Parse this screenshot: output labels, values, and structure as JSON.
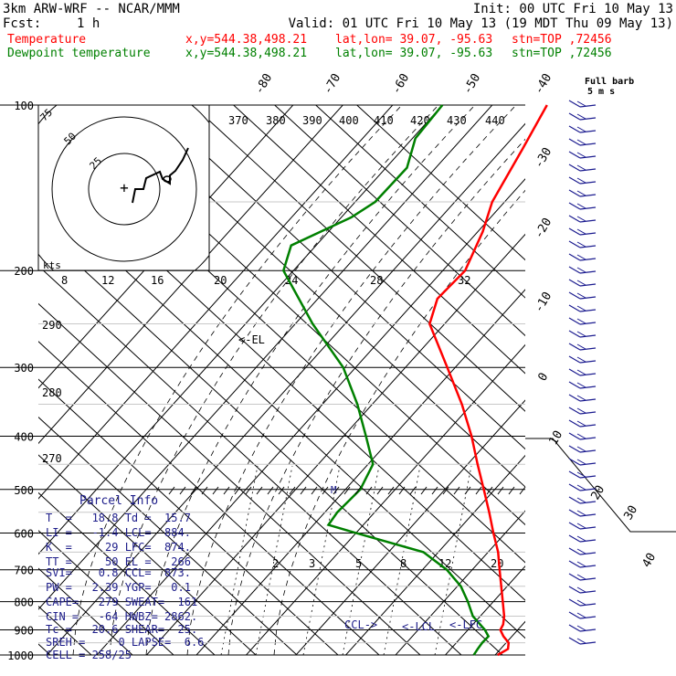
{
  "header": {
    "model": "3km ARW-WRF -- NCAR/MMM",
    "init": "Init: 00 UTC Fri 10 May 13",
    "fcst_label": "Fcst:",
    "fcst_value": "1 h",
    "valid": "Valid: 01 UTC Fri 10 May 13 (19 MDT Thu 09 May 13)",
    "temperature_row": [
      "Temperature",
      "x,y=544.38,498.21",
      "lat,lon= 39.07, -95.63",
      "stn=TOP ,72456"
    ],
    "dewpoint_row": [
      "Dewpoint temperature",
      "x,y=544.38,498.21",
      "lat,lon= 39.07, -95.63",
      "stn=TOP ,72456"
    ]
  },
  "colors": {
    "temperature": "#ff0000",
    "dewpoint": "#008000",
    "barbs": "#1b1b8f",
    "parcel_text": "#1d1d8a"
  },
  "wind_barb_legend": [
    "Full barb",
    "5 m s"
  ],
  "parcel_info": {
    "title": "Parcel Info",
    "rows": [
      "T  =   18.8 Td =  15.7",
      "LI =   -1.4 LCL=  884.",
      "K  =     29 LFC=  874.",
      "TT =     50 EL =   266",
      "SVI=    0.8 CCL=  873.",
      "PW =   2.39 YGP=   0.1",
      "CAPE=   279 SWEAT=  161",
      "CIN =   -64 HWBZ= 2862.",
      "Tc =   20.6 SHEAR=  25.",
      "SREH =     0 LAPSE=  6.6",
      "CELL = 258/25"
    ]
  },
  "hodograph": {
    "ring_labels": [
      "75",
      "50",
      "25"
    ],
    "shear_labels": [
      "kts",
      "8",
      "12",
      "16",
      "20",
      "24",
      "28",
      "32"
    ],
    "theta_labels": [
      "370",
      "380",
      "390",
      "400",
      "410",
      "420",
      "430",
      "440"
    ],
    "right_theta_labels": [
      "290",
      "280",
      "270"
    ]
  },
  "level_labels": [
    "EL",
    "CCL",
    "LCL",
    "LFC"
  ],
  "mixing_ratio_labels": [
    "2",
    "3",
    "5",
    "8",
    "12",
    "20"
  ],
  "chart_data": {
    "type": "line",
    "title": "",
    "xlabel": "",
    "ylabel": "",
    "y_scale": "log-pressure",
    "pressure_ticks": [
      100,
      200,
      300,
      400,
      500,
      600,
      700,
      800,
      900,
      1000
    ],
    "isotherm_labels_top": [
      -80,
      -70,
      -60,
      -50,
      -40
    ],
    "isotherm_labels_right": [
      -30,
      -20,
      -10,
      0,
      10,
      20,
      30,
      40
    ],
    "series": [
      {
        "name": "Temperature",
        "pressure": [
          1000,
          975,
          950,
          925,
          900,
          880,
          850,
          800,
          750,
          700,
          650,
          600,
          550,
          500,
          450,
          400,
          350,
          300,
          250,
          225,
          200,
          170,
          150,
          120,
          100
        ],
        "temperature": [
          20.5,
          21.5,
          20.5,
          18.3,
          16.5,
          16.1,
          14.8,
          11.9,
          8.8,
          5.5,
          2.0,
          -2.4,
          -7.0,
          -12.2,
          -18.0,
          -24.3,
          -32.0,
          -41.6,
          -53.0,
          -56.0,
          -55.5,
          -59.0,
          -62.5,
          -66.0,
          -69.0
        ]
      },
      {
        "name": "Dewpoint temperature",
        "pressure": [
          1000,
          975,
          950,
          925,
          900,
          850,
          800,
          750,
          700,
          650,
          600,
          580,
          550,
          500,
          450,
          400,
          350,
          300,
          250,
          200,
          180,
          160,
          150,
          130,
          115,
          100
        ],
        "dewpoint": [
          15.7,
          15.4,
          15.2,
          15.3,
          13.4,
          8.5,
          4.9,
          0.7,
          -5.1,
          -13.0,
          -30.0,
          -37.0,
          -37.5,
          -37.0,
          -39.0,
          -45.5,
          -53.0,
          -62.5,
          -76.5,
          -92.0,
          -95.0,
          -88.0,
          -86.0,
          -85.8,
          -89.4,
          -90.0
        ]
      }
    ]
  }
}
